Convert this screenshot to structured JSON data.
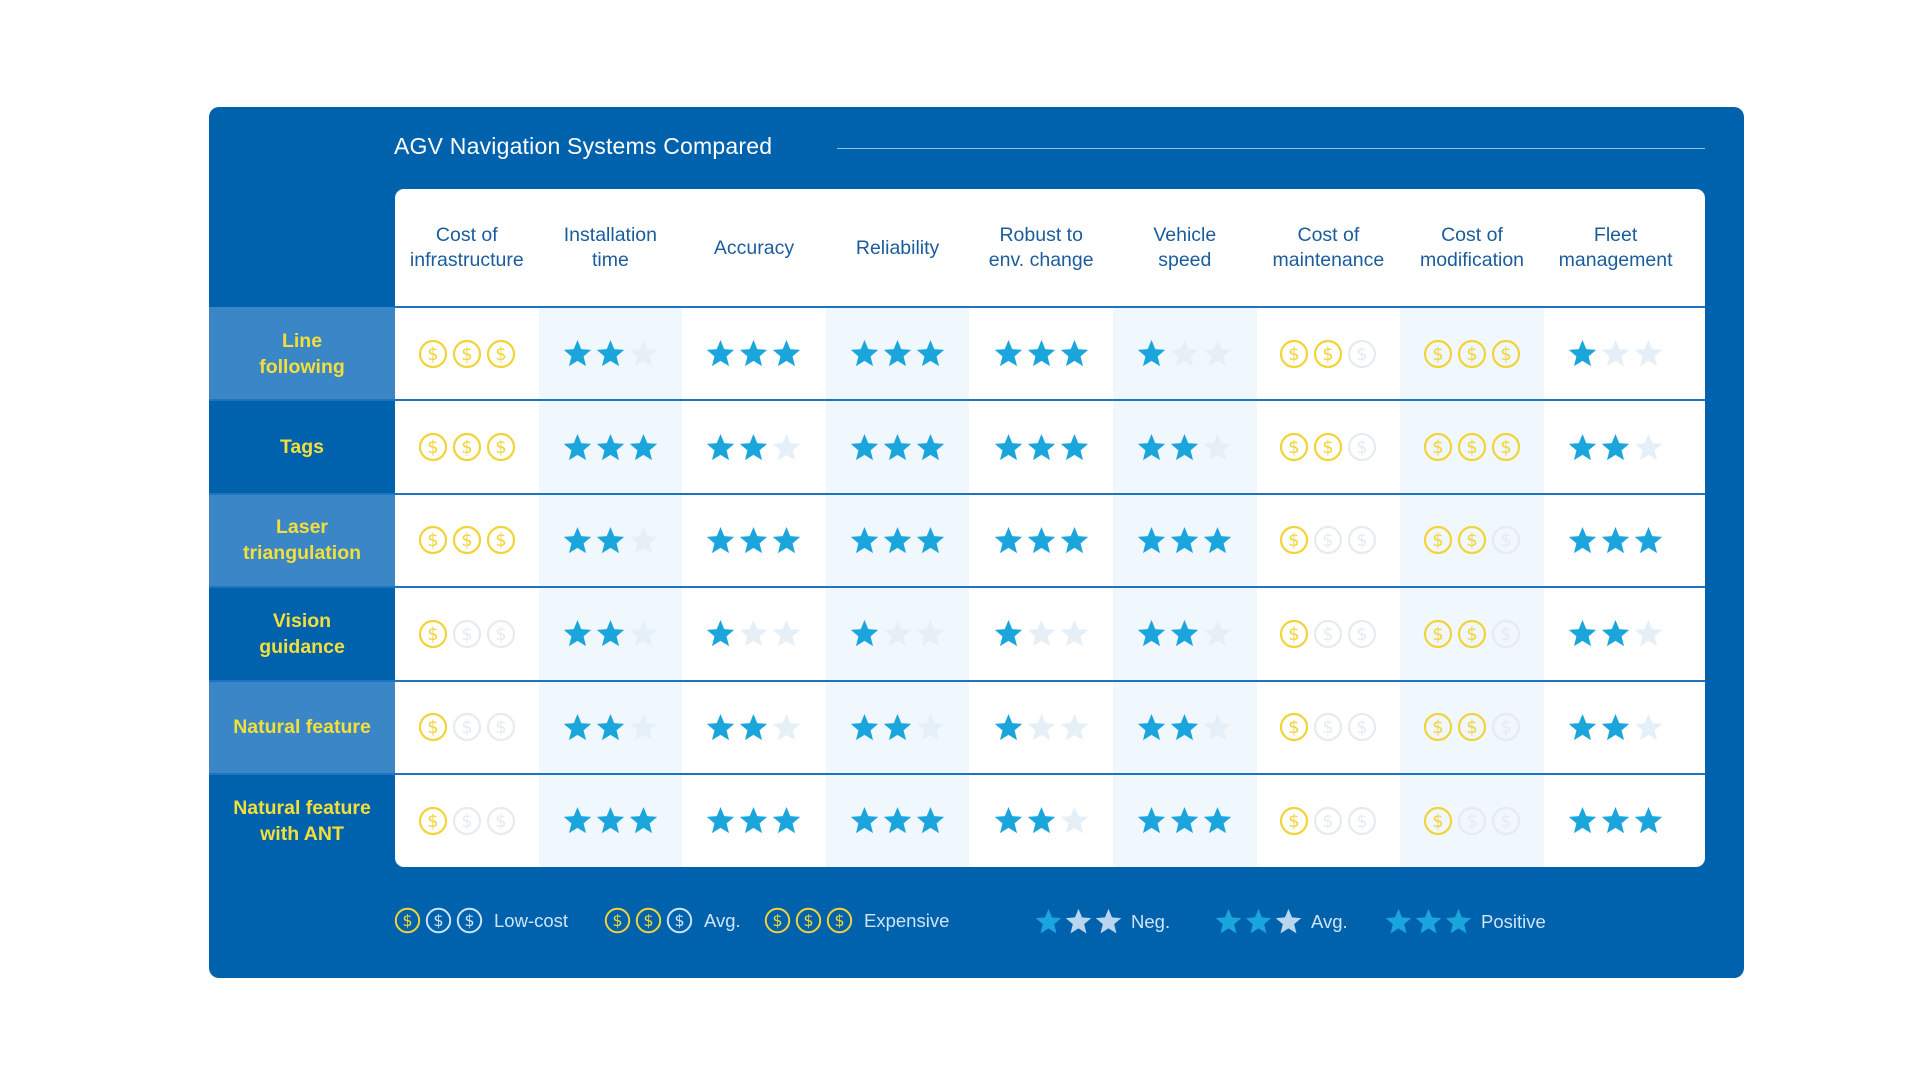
{
  "colors": {
    "panel_bg": "#0062ad",
    "star_on": "#1aa6dc",
    "star_off": "#e4eff8",
    "coin_on": "#f2d33a",
    "coin_off": "#e6ebf0",
    "label_yellow": "#f4df3a"
  },
  "chart_data": {
    "type": "table",
    "title": "AGV Navigation Systems Compared",
    "columns": [
      {
        "label": "Cost of\ninfrastructure",
        "symbol": "coin"
      },
      {
        "label": "Installation\ntime",
        "symbol": "star"
      },
      {
        "label": "Accuracy",
        "symbol": "star"
      },
      {
        "label": "Reliability",
        "symbol": "star"
      },
      {
        "label": "Robust to\nenv. change",
        "symbol": "star"
      },
      {
        "label": "Vehicle\nspeed",
        "symbol": "star"
      },
      {
        "label": "Cost of\nmaintenance",
        "symbol": "coin"
      },
      {
        "label": "Cost of\nmodification",
        "symbol": "coin"
      },
      {
        "label": "Fleet\nmanagement",
        "symbol": "star"
      }
    ],
    "rows": [
      {
        "label": "Line\nfollowing",
        "values": [
          3,
          2,
          3,
          3,
          3,
          1,
          2,
          3,
          1
        ]
      },
      {
        "label": "Tags",
        "values": [
          3,
          3,
          2,
          3,
          3,
          2,
          2,
          3,
          2
        ]
      },
      {
        "label": "Laser\ntriangulation",
        "values": [
          3,
          2,
          3,
          3,
          3,
          3,
          1,
          2,
          3
        ]
      },
      {
        "label": "Vision\nguidance",
        "values": [
          1,
          2,
          1,
          1,
          1,
          2,
          1,
          2,
          2
        ]
      },
      {
        "label": "Natural feature",
        "values": [
          1,
          2,
          2,
          2,
          1,
          2,
          1,
          2,
          2
        ]
      },
      {
        "label": "Natural feature\nwith ANT",
        "values": [
          1,
          3,
          3,
          3,
          2,
          3,
          1,
          1,
          3
        ]
      }
    ],
    "scale_max": 3,
    "legend": [
      {
        "label": "Low-cost",
        "symbol": "coin-legend",
        "style": "low"
      },
      {
        "label": "Avg.",
        "symbol": "coin-legend",
        "style": "avg"
      },
      {
        "label": "Expensive",
        "symbol": "coin-legend",
        "style": "exp"
      },
      {
        "label": "Neg.",
        "symbol": "star",
        "filled": 1
      },
      {
        "label": "Avg.",
        "symbol": "star",
        "filled": 2
      },
      {
        "label": "Positive",
        "symbol": "star",
        "filled": 3
      }
    ]
  }
}
